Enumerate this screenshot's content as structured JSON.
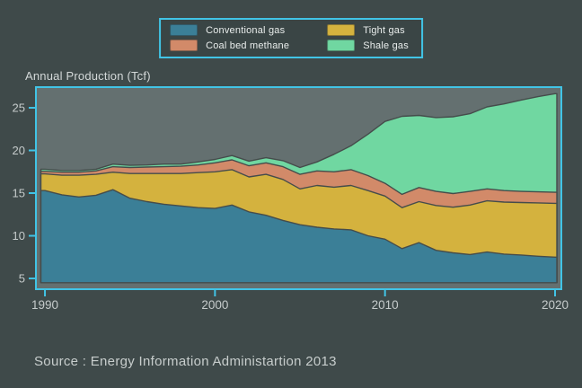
{
  "page": {
    "background_color": "#3F4A4A",
    "plot_background_color": "#647070",
    "accent_color": "#41C4E6",
    "text_color": "#C7CDCC"
  },
  "source": "Source : Energy Information Administartion 2013",
  "chart_data": {
    "type": "area",
    "stacked": true,
    "title": "Annual Production (Tcf)",
    "legend_position": "top-center",
    "grid": false,
    "x": [
      1990,
      1991,
      1992,
      1993,
      1994,
      1995,
      1996,
      1997,
      1998,
      1999,
      2000,
      2001,
      2002,
      2003,
      2004,
      2005,
      2006,
      2007,
      2008,
      2009,
      2010,
      2011,
      2012,
      2013,
      2014,
      2015,
      2016,
      2017,
      2018,
      2019,
      2020
    ],
    "xticks": [
      1990,
      2000,
      2010,
      2020
    ],
    "yticks": [
      5,
      10,
      15,
      20,
      25
    ],
    "xlim": [
      1989.47,
      2020.37
    ],
    "ylim": [
      3.74,
      27.42
    ],
    "baseline_value": 4.5,
    "series": [
      {
        "name": "Conventional gas",
        "color": "#3B7F97",
        "values": [
          15.3,
          14.8,
          14.55,
          14.75,
          15.4,
          14.4,
          14.0,
          13.7,
          13.5,
          13.3,
          13.2,
          13.6,
          12.8,
          12.4,
          11.8,
          11.3,
          11.0,
          10.8,
          10.7,
          10.0,
          9.6,
          8.5,
          9.2,
          8.3,
          8.0,
          7.8,
          8.1,
          7.85,
          7.75,
          7.6,
          7.5
        ]
      },
      {
        "name": "Tight gas",
        "color": "#D4B23E",
        "values": [
          1.95,
          2.3,
          2.55,
          2.45,
          2.05,
          2.9,
          3.3,
          3.6,
          3.8,
          4.1,
          4.3,
          4.15,
          4.1,
          4.8,
          4.8,
          4.2,
          4.9,
          4.9,
          5.2,
          5.3,
          5.05,
          4.8,
          4.8,
          5.25,
          5.35,
          5.8,
          6.0,
          6.1,
          6.15,
          6.25,
          6.3
        ]
      },
      {
        "name": "Coal bed methane",
        "color": "#D28A69",
        "values": [
          0.3,
          0.35,
          0.35,
          0.4,
          0.65,
          0.7,
          0.75,
          0.8,
          0.85,
          0.9,
          1.05,
          1.15,
          1.3,
          1.35,
          1.5,
          1.7,
          1.7,
          1.8,
          1.85,
          1.75,
          1.5,
          1.55,
          1.65,
          1.65,
          1.6,
          1.6,
          1.4,
          1.35,
          1.3,
          1.3,
          1.3
        ]
      },
      {
        "name": "Shale gas",
        "color": "#70D7A1",
        "values": [
          0.25,
          0.2,
          0.2,
          0.2,
          0.3,
          0.25,
          0.25,
          0.3,
          0.25,
          0.35,
          0.4,
          0.5,
          0.55,
          0.6,
          0.7,
          0.8,
          1.05,
          2.05,
          2.8,
          4.85,
          7.25,
          9.15,
          8.45,
          8.65,
          9.0,
          9.1,
          9.6,
          10.15,
          10.7,
          11.15,
          11.55
        ]
      }
    ],
    "legend_order": [
      0,
      2,
      1,
      3
    ],
    "axis_border_color": "#41C4E6",
    "area_outline_color": "#454C4B",
    "tick_label_color": "#C5CBCB"
  }
}
